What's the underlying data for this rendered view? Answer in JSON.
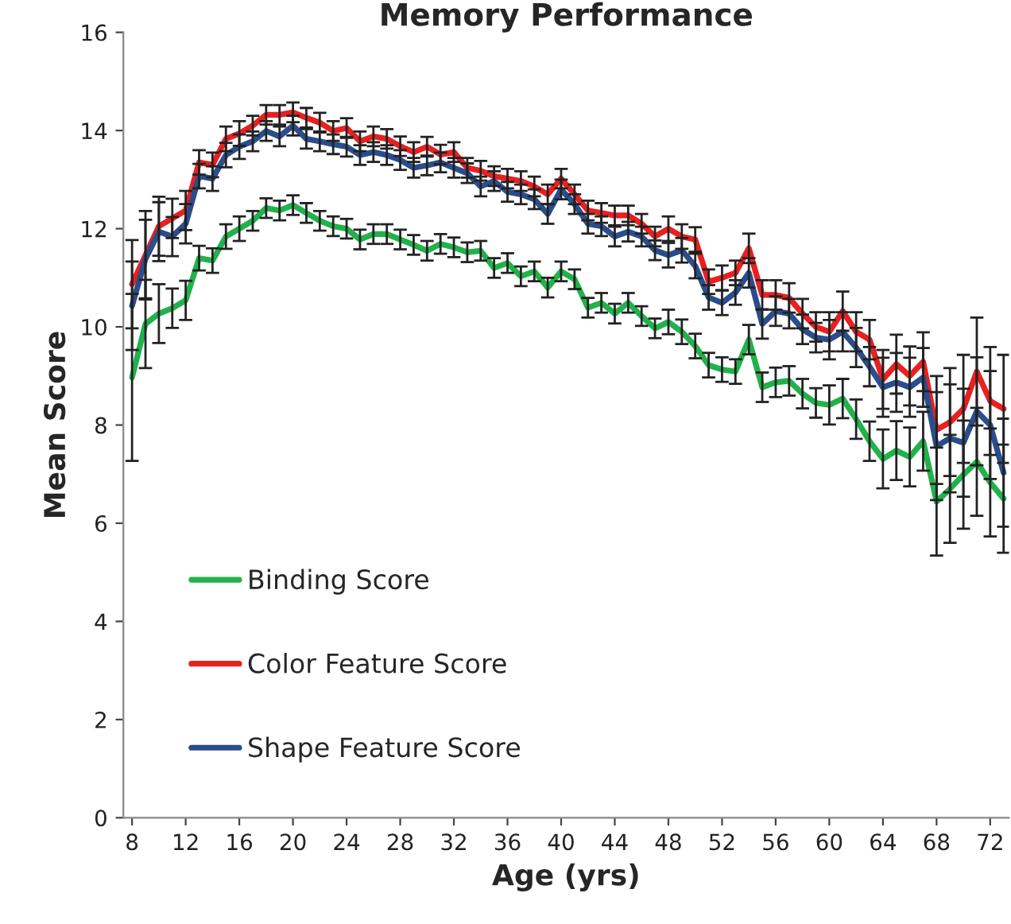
{
  "chart_data": {
    "type": "line",
    "title": "Memory Performance",
    "xlabel": "Age (yrs)",
    "ylabel": "Mean Score",
    "x": [
      8,
      9,
      10,
      11,
      12,
      13,
      14,
      15,
      16,
      17,
      18,
      19,
      20,
      21,
      22,
      23,
      24,
      25,
      26,
      27,
      28,
      29,
      30,
      31,
      32,
      33,
      34,
      35,
      36,
      37,
      38,
      39,
      40,
      41,
      42,
      43,
      44,
      45,
      46,
      47,
      48,
      49,
      50,
      51,
      52,
      53,
      54,
      55,
      56,
      57,
      58,
      59,
      60,
      61,
      62,
      63,
      64,
      65,
      66,
      67,
      68,
      69,
      70,
      71,
      72,
      73
    ],
    "series": [
      {
        "name": "Binding Score",
        "color": "#21b24b",
        "values": [
          8.97,
          10.06,
          10.27,
          10.38,
          10.54,
          11.4,
          11.35,
          11.84,
          12.0,
          12.16,
          12.42,
          12.37,
          12.48,
          12.32,
          12.16,
          12.05,
          12.0,
          11.78,
          11.89,
          11.89,
          11.78,
          11.67,
          11.55,
          11.69,
          11.62,
          11.52,
          11.55,
          11.2,
          11.3,
          11.03,
          11.13,
          10.8,
          11.13,
          10.97,
          10.39,
          10.49,
          10.27,
          10.49,
          10.22,
          9.97,
          10.1,
          9.9,
          9.61,
          9.22,
          9.13,
          9.09,
          9.74,
          8.77,
          8.87,
          8.9,
          8.64,
          8.45,
          8.41,
          8.54,
          8.12,
          7.67,
          7.31,
          7.48,
          7.35,
          7.67,
          6.44,
          6.7,
          6.99,
          7.25,
          6.83,
          6.5
        ],
        "errors": [
          1.7,
          0.9,
          0.6,
          0.4,
          0.4,
          0.25,
          0.25,
          0.25,
          0.25,
          0.2,
          0.2,
          0.2,
          0.2,
          0.2,
          0.2,
          0.2,
          0.2,
          0.2,
          0.2,
          0.2,
          0.2,
          0.2,
          0.2,
          0.2,
          0.2,
          0.2,
          0.2,
          0.2,
          0.2,
          0.2,
          0.2,
          0.2,
          0.2,
          0.2,
          0.2,
          0.2,
          0.2,
          0.2,
          0.2,
          0.2,
          0.25,
          0.25,
          0.25,
          0.25,
          0.25,
          0.25,
          0.3,
          0.3,
          0.3,
          0.3,
          0.3,
          0.3,
          0.4,
          0.4,
          0.4,
          0.4,
          0.6,
          0.6,
          0.6,
          0.6,
          1.1,
          1.1,
          1.1,
          1.1,
          1.1,
          1.1
        ]
      },
      {
        "name": "Color Feature Score",
        "color": "#e8201f",
        "values": [
          10.87,
          11.46,
          12.05,
          12.21,
          12.37,
          13.35,
          13.3,
          13.83,
          13.94,
          14.1,
          14.32,
          14.32,
          14.37,
          14.26,
          14.16,
          13.99,
          14.05,
          13.78,
          13.88,
          13.83,
          13.68,
          13.56,
          13.67,
          13.51,
          13.56,
          13.24,
          13.18,
          13.07,
          13.02,
          12.97,
          12.86,
          12.7,
          13.02,
          12.7,
          12.37,
          12.32,
          12.27,
          12.27,
          12.1,
          11.84,
          12.0,
          11.84,
          11.78,
          10.92,
          11.0,
          11.1,
          11.6,
          10.65,
          10.65,
          10.59,
          10.27,
          10.0,
          9.9,
          10.32,
          9.9,
          9.74,
          8.93,
          9.24,
          9.0,
          9.29,
          7.9,
          8.06,
          8.33,
          9.09,
          8.49,
          8.33
        ],
        "errors": [
          0.9,
          0.9,
          0.6,
          0.4,
          0.4,
          0.25,
          0.25,
          0.25,
          0.25,
          0.2,
          0.2,
          0.2,
          0.2,
          0.2,
          0.2,
          0.2,
          0.2,
          0.2,
          0.2,
          0.2,
          0.2,
          0.2,
          0.2,
          0.2,
          0.2,
          0.2,
          0.2,
          0.2,
          0.2,
          0.2,
          0.2,
          0.2,
          0.2,
          0.2,
          0.2,
          0.2,
          0.2,
          0.2,
          0.2,
          0.2,
          0.25,
          0.25,
          0.25,
          0.25,
          0.25,
          0.25,
          0.3,
          0.3,
          0.3,
          0.3,
          0.3,
          0.3,
          0.4,
          0.4,
          0.4,
          0.4,
          0.6,
          0.6,
          0.6,
          0.6,
          1.1,
          1.1,
          1.1,
          1.1,
          1.1,
          1.1
        ]
      },
      {
        "name": "Shape Feature Score",
        "color": "#2a4d8c",
        "values": [
          10.43,
          11.38,
          11.94,
          11.84,
          12.1,
          13.07,
          13.02,
          13.5,
          13.67,
          13.78,
          13.99,
          13.88,
          14.1,
          13.83,
          13.78,
          13.72,
          13.67,
          13.5,
          13.56,
          13.5,
          13.4,
          13.24,
          13.29,
          13.35,
          13.24,
          13.13,
          12.86,
          12.97,
          12.75,
          12.7,
          12.6,
          12.3,
          12.8,
          12.5,
          12.1,
          12.05,
          11.84,
          11.94,
          11.84,
          11.56,
          11.46,
          11.56,
          11.24,
          10.6,
          10.49,
          10.7,
          11.1,
          10.06,
          10.32,
          10.27,
          9.95,
          9.78,
          9.74,
          9.9,
          9.58,
          9.19,
          8.77,
          8.87,
          8.77,
          8.97,
          7.57,
          7.73,
          7.64,
          8.28,
          8.0,
          7.03
        ],
        "errors": [
          0.9,
          0.8,
          0.6,
          0.4,
          0.4,
          0.25,
          0.25,
          0.25,
          0.25,
          0.2,
          0.2,
          0.2,
          0.2,
          0.2,
          0.2,
          0.2,
          0.2,
          0.2,
          0.2,
          0.2,
          0.2,
          0.2,
          0.2,
          0.2,
          0.2,
          0.2,
          0.2,
          0.2,
          0.2,
          0.2,
          0.2,
          0.2,
          0.2,
          0.2,
          0.2,
          0.2,
          0.2,
          0.2,
          0.2,
          0.2,
          0.25,
          0.25,
          0.25,
          0.25,
          0.25,
          0.25,
          0.3,
          0.3,
          0.3,
          0.3,
          0.3,
          0.3,
          0.4,
          0.4,
          0.4,
          0.4,
          0.6,
          0.6,
          0.6,
          0.6,
          1.1,
          1.1,
          1.1,
          1.1,
          1.1,
          1.1
        ]
      }
    ],
    "xlim": [
      7.35,
      73.4
    ],
    "xticks": [
      8,
      12,
      16,
      20,
      24,
      28,
      32,
      36,
      40,
      44,
      48,
      52,
      56,
      60,
      64,
      68,
      72
    ],
    "ylim": [
      0,
      16
    ],
    "yticks": [
      0,
      2,
      4,
      6,
      8,
      10,
      12,
      14,
      16
    ],
    "grid": false,
    "legend": "bottom left",
    "marker": "none",
    "line_style": "solid"
  }
}
